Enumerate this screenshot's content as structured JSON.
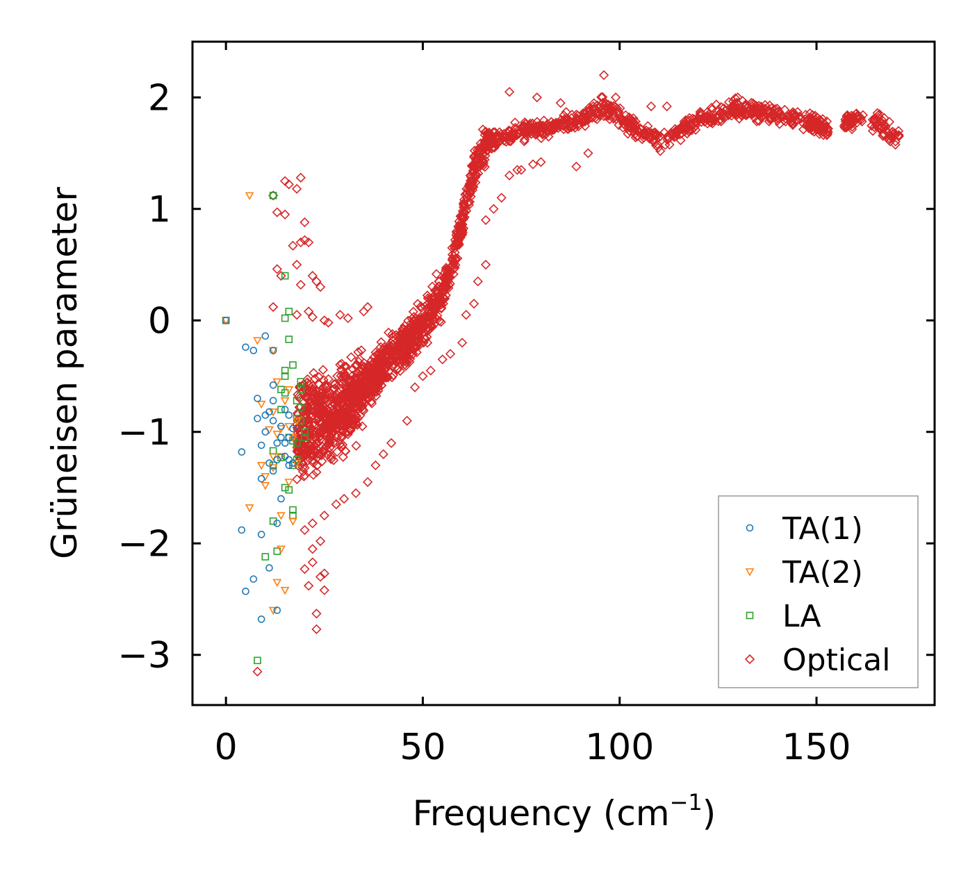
{
  "chart_data": {
    "type": "scatter",
    "title": "",
    "xlabel": "Frequency (cm",
    "xlabel_sup": "−1",
    "xlabel_end": ")",
    "ylabel": "Grüneisen parameter",
    "xlim": [
      -8.5,
      180
    ],
    "ylim": [
      -3.45,
      2.5
    ],
    "xticks": [
      0,
      50,
      100,
      150
    ],
    "xtick_labels": [
      "0",
      "50",
      "100",
      "150"
    ],
    "yticks": [
      -3,
      -2,
      -1,
      0,
      1,
      2
    ],
    "ytick_labels": [
      "−3",
      "−2",
      "−1",
      "0",
      "1",
      "2"
    ],
    "grid": false,
    "legend_position": "bottom-right",
    "series": [
      {
        "name": "TA(1)",
        "marker": "circle",
        "color": "#1f77b4",
        "points": [
          [
            0,
            0
          ],
          [
            5,
            -0.24
          ],
          [
            7,
            -0.27
          ],
          [
            10,
            -0.14
          ],
          [
            12,
            -0.27
          ],
          [
            8,
            -0.7
          ],
          [
            12,
            -0.72
          ],
          [
            10,
            -0.85
          ],
          [
            8,
            -0.88
          ],
          [
            11,
            -0.82
          ],
          [
            12,
            -0.9
          ],
          [
            10,
            -1.0
          ],
          [
            14,
            -0.95
          ],
          [
            16,
            -0.85
          ],
          [
            14,
            -1.05
          ],
          [
            15,
            -1.1
          ],
          [
            13,
            -1.1
          ],
          [
            16,
            -1.05
          ],
          [
            9,
            -1.12
          ],
          [
            4,
            -1.18
          ],
          [
            11,
            -1.28
          ],
          [
            12,
            -1.35
          ],
          [
            13,
            -1.25
          ],
          [
            15,
            -1.22
          ],
          [
            16,
            -1.25
          ],
          [
            17,
            -1.28
          ],
          [
            9,
            -1.42
          ],
          [
            14,
            -1.6
          ],
          [
            13,
            -1.82
          ],
          [
            4,
            -1.88
          ],
          [
            9,
            -1.92
          ],
          [
            11,
            -2.22
          ],
          [
            7,
            -2.32
          ],
          [
            5,
            -2.43
          ],
          [
            13,
            -2.6
          ],
          [
            9,
            -2.68
          ],
          [
            15,
            -0.8
          ],
          [
            17,
            -0.97
          ],
          [
            12,
            -0.58
          ],
          [
            16,
            -1.3
          ]
        ]
      },
      {
        "name": "TA(2)",
        "marker": "triangle",
        "color": "#ff7f0e",
        "points": [
          [
            0,
            0
          ],
          [
            6,
            1.12
          ],
          [
            8,
            -0.18
          ],
          [
            12,
            -0.27
          ],
          [
            13,
            -0.55
          ],
          [
            9,
            -0.75
          ],
          [
            12,
            -0.82
          ],
          [
            15,
            -0.72
          ],
          [
            11,
            -0.98
          ],
          [
            14,
            -0.97
          ],
          [
            16,
            -0.95
          ],
          [
            13,
            -1.02
          ],
          [
            17,
            -1.05
          ],
          [
            12,
            -1.22
          ],
          [
            14,
            -1.22
          ],
          [
            9,
            -1.3
          ],
          [
            12,
            -1.32
          ],
          [
            18,
            -1.28
          ],
          [
            10,
            -1.4
          ],
          [
            10,
            -1.48
          ],
          [
            16,
            -1.45
          ],
          [
            6,
            -1.68
          ],
          [
            14,
            -1.75
          ],
          [
            17,
            -1.8
          ],
          [
            14,
            -2.05
          ],
          [
            13,
            -2.35
          ],
          [
            15,
            -2.42
          ],
          [
            12,
            -2.6
          ],
          [
            18,
            -0.9
          ],
          [
            16,
            -0.62
          ]
        ]
      },
      {
        "name": "LA",
        "marker": "square",
        "color": "#2ca02c",
        "points": [
          [
            0,
            0
          ],
          [
            12,
            1.12
          ],
          [
            15,
            0.4
          ],
          [
            16,
            0.08
          ],
          [
            15,
            0.02
          ],
          [
            16,
            -0.17
          ],
          [
            17,
            -0.4
          ],
          [
            15,
            -0.5
          ],
          [
            14,
            -0.62
          ],
          [
            19,
            -0.55
          ],
          [
            15,
            -0.65
          ],
          [
            19,
            -0.62
          ],
          [
            18,
            -0.72
          ],
          [
            14,
            -0.8
          ],
          [
            18,
            -0.88
          ],
          [
            19,
            -0.9
          ],
          [
            20,
            -1.0
          ],
          [
            20,
            -1.05
          ],
          [
            17,
            -1.08
          ],
          [
            18,
            -1.1
          ],
          [
            16,
            -1.05
          ],
          [
            12,
            -1.17
          ],
          [
            14,
            -1.23
          ],
          [
            18,
            -1.25
          ],
          [
            17,
            -1.3
          ],
          [
            12,
            -1.3
          ],
          [
            15,
            -1.5
          ],
          [
            16,
            -1.52
          ],
          [
            17,
            -1.7
          ],
          [
            17,
            -1.75
          ],
          [
            12,
            -1.8
          ],
          [
            13,
            -2.07
          ],
          [
            10,
            -2.12
          ],
          [
            8,
            -3.05
          ],
          [
            15,
            -0.45
          ],
          [
            19,
            -0.78
          ]
        ]
      },
      {
        "name": "Optical",
        "marker": "diamond",
        "color": "#d62728",
        "trend": {
          "x": [
            17,
            20,
            25,
            30,
            35,
            40,
            45,
            50,
            55,
            58,
            60,
            62,
            64,
            66,
            70,
            80,
            90,
            96,
            100,
            105,
            110,
            120,
            130,
            140,
            150,
            155,
            160,
            165,
            171
          ],
          "y": [
            -1.05,
            -0.95,
            -0.9,
            -0.8,
            -0.6,
            -0.4,
            -0.25,
            -0.05,
            0.25,
            0.6,
            0.9,
            1.2,
            1.45,
            1.58,
            1.65,
            1.72,
            1.8,
            1.92,
            1.82,
            1.7,
            1.62,
            1.8,
            1.9,
            1.85,
            1.75,
            1.72,
            1.82,
            1.78,
            1.62
          ]
        },
        "extra_points": [
          [
            12,
            1.12
          ],
          [
            15,
            1.25
          ],
          [
            16,
            1.22
          ],
          [
            18,
            1.18
          ],
          [
            19,
            1.28
          ],
          [
            13,
            0.97
          ],
          [
            15,
            0.95
          ],
          [
            20,
            0.88
          ],
          [
            20,
            0.72
          ],
          [
            17,
            0.67
          ],
          [
            19,
            0.7
          ],
          [
            21,
            0.7
          ],
          [
            18,
            0.5
          ],
          [
            19,
            0.32
          ],
          [
            13,
            0.46
          ],
          [
            14,
            0.4
          ],
          [
            22,
            0.4
          ],
          [
            23,
            0.35
          ],
          [
            24,
            0.3
          ],
          [
            12,
            0.12
          ],
          [
            18,
            0.05
          ],
          [
            21,
            0.08
          ],
          [
            22,
            0.03
          ],
          [
            25,
            0.0
          ],
          [
            26,
            -0.02
          ],
          [
            29,
            0.05
          ],
          [
            31,
            0.02
          ],
          [
            35,
            0.08
          ],
          [
            36,
            0.12
          ],
          [
            8,
            -3.15
          ],
          [
            23,
            -2.77
          ],
          [
            23,
            -2.63
          ],
          [
            25,
            -2.42
          ],
          [
            24,
            -2.3
          ],
          [
            22,
            -2.17
          ],
          [
            25,
            -2.27
          ],
          [
            21,
            -2.38
          ],
          [
            20,
            -2.23
          ],
          [
            22,
            -2.05
          ],
          [
            24,
            -1.98
          ],
          [
            20,
            -1.88
          ],
          [
            22,
            -1.82
          ],
          [
            25,
            -1.75
          ],
          [
            28,
            -1.65
          ],
          [
            30,
            -1.6
          ],
          [
            33,
            -1.55
          ],
          [
            36,
            -1.45
          ],
          [
            38,
            -1.3
          ],
          [
            40,
            -1.2
          ],
          [
            42,
            -1.1
          ],
          [
            46,
            -0.9
          ],
          [
            48,
            -0.6
          ],
          [
            50,
            -0.5
          ],
          [
            52,
            -0.45
          ],
          [
            55,
            -0.35
          ],
          [
            57,
            -0.3
          ],
          [
            60,
            -0.2
          ],
          [
            61,
            0.05
          ],
          [
            63,
            0.15
          ],
          [
            64,
            0.35
          ],
          [
            66,
            0.5
          ],
          [
            66,
            0.9
          ],
          [
            68,
            1.0
          ],
          [
            70,
            1.1
          ],
          [
            72,
            1.3
          ],
          [
            74,
            1.35
          ],
          [
            75,
            1.35
          ],
          [
            78,
            1.4
          ],
          [
            80,
            1.42
          ],
          [
            89,
            1.38
          ],
          [
            92,
            1.5
          ],
          [
            72,
            2.05
          ],
          [
            79,
            2.0
          ],
          [
            85,
            1.95
          ],
          [
            96,
            2.2
          ],
          [
            99,
            2.0
          ],
          [
            108,
            1.92
          ],
          [
            112,
            1.92
          ],
          [
            130,
            2.0
          ],
          [
            140,
            1.9
          ],
          [
            160,
            1.85
          ],
          [
            166,
            1.85
          ]
        ]
      }
    ]
  }
}
